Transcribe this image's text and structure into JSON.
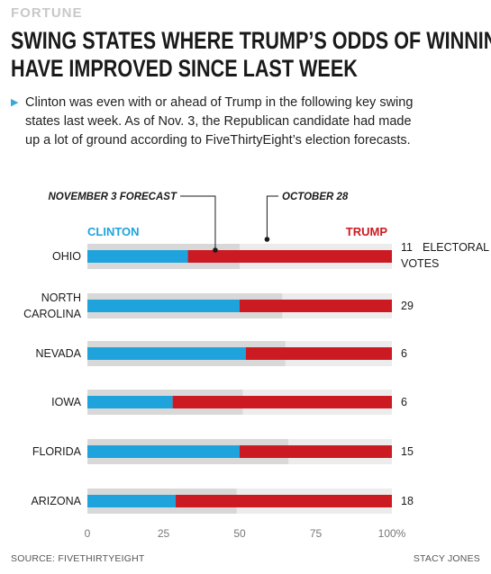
{
  "brand": "FORTUNE",
  "title_line1": "SWING STATES WHERE TRUMP’S ODDS OF WINNING",
  "title_line2": "HAVE IMPROVED SINCE LAST WEEK",
  "subtitle_line1": "Clinton was even with or ahead of Trump in the following key swing",
  "subtitle_line2": "states last week. As of Nov. 3, the Republican candidate had made",
  "subtitle_line3": "up a lot of ground according to FiveThirtyEight’s election forecasts.",
  "source": "SOURCE: FIVETHIRTYEIGHT",
  "credit": "STACY JONES",
  "colors": {
    "clinton": "#1fa3dc",
    "trump": "#cc1a22",
    "oct28": "#d8d8d8",
    "track": "#ececec"
  },
  "chart_data": {
    "type": "bar",
    "orientation": "horizontal",
    "stacked": true,
    "annotation_nov3": "NOVEMBER 3 FORECAST",
    "annotation_oct28": "OCTOBER 28",
    "legend_left": "CLINTON",
    "legend_right": "TRUMP",
    "electoral_label_line1": "ELECTORAL",
    "electoral_label_line2": "VOTES",
    "xlim": [
      0,
      100
    ],
    "ticks": [
      "0",
      "25",
      "50",
      "75",
      "100%"
    ],
    "tick_values": [
      0,
      25,
      50,
      75,
      100
    ],
    "categories": [
      {
        "lines": [
          "OHIO"
        ],
        "clinton_nov3": 33,
        "clinton_oct28": 50,
        "electoral_votes": "11"
      },
      {
        "lines": [
          "NORTH",
          "CAROLINA"
        ],
        "clinton_nov3": 50,
        "clinton_oct28": 64,
        "electoral_votes": "29"
      },
      {
        "lines": [
          "NEVADA"
        ],
        "clinton_nov3": 52,
        "clinton_oct28": 65,
        "electoral_votes": "6"
      },
      {
        "lines": [
          "IOWA"
        ],
        "clinton_nov3": 28,
        "clinton_oct28": 51,
        "electoral_votes": "6"
      },
      {
        "lines": [
          "FLORIDA"
        ],
        "clinton_nov3": 50,
        "clinton_oct28": 66,
        "electoral_votes": "15"
      },
      {
        "lines": [
          "ARIZONA"
        ],
        "clinton_nov3": 29,
        "clinton_oct28": 49,
        "electoral_votes": "18"
      }
    ]
  }
}
